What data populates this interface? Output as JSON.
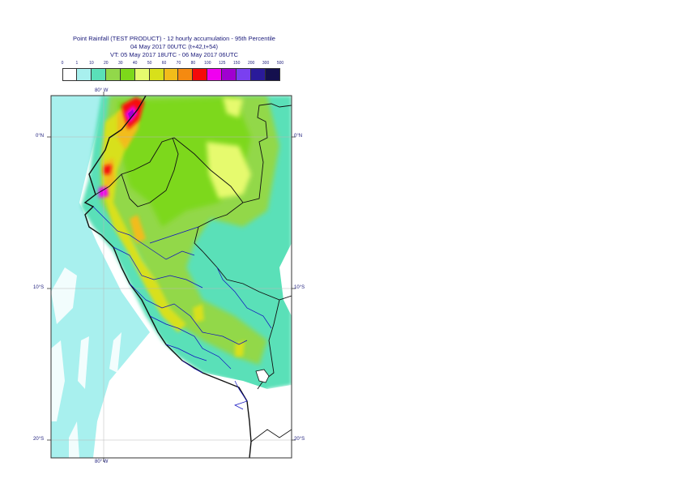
{
  "title": {
    "line1": "Point Rainfall (TEST PRODUCT) - 12 hourly accumulation - 95th Percentile",
    "line2": "04 May 2017 00UTC (t+42,t+54)",
    "line3": "VT: 05 May 2017 18UTC - 06 May 2017 06UTC"
  },
  "legend": {
    "ticks": [
      "0",
      "1",
      "10",
      "20",
      "30",
      "40",
      "50",
      "60",
      "70",
      "80",
      "100",
      "125",
      "150",
      "200",
      "300",
      "500"
    ],
    "colors": [
      "#ffffff",
      "#a8f0ee",
      "#5ae0b8",
      "#92d84a",
      "#7dd81a",
      "#e6fa6e",
      "#d8e01a",
      "#f2bc1a",
      "#f58a10",
      "#f50a0a",
      "#f000f0",
      "#a000d0",
      "#7a40f0",
      "#2a1a9a",
      "#14104e"
    ]
  },
  "map": {
    "lon_labels": [
      "80° W",
      "80° W"
    ],
    "lat_labels": {
      "n0": "0°N",
      "s10": "10°S",
      "s20": "20°S"
    },
    "colors": {
      "ocean_light": "#a8f0ee",
      "teal": "#5ae0b8",
      "green": "#92d84a",
      "bright_green": "#7dd81a",
      "yellow_green": "#e6fa6e",
      "yellow": "#d8e01a",
      "orange": "#f2bc1a",
      "dark_orange": "#f58a10",
      "red": "#f50a0a",
      "magenta": "#f000f0",
      "purple": "#a000d0",
      "border_black": "#111111",
      "border_blue": "#1010c0"
    }
  }
}
